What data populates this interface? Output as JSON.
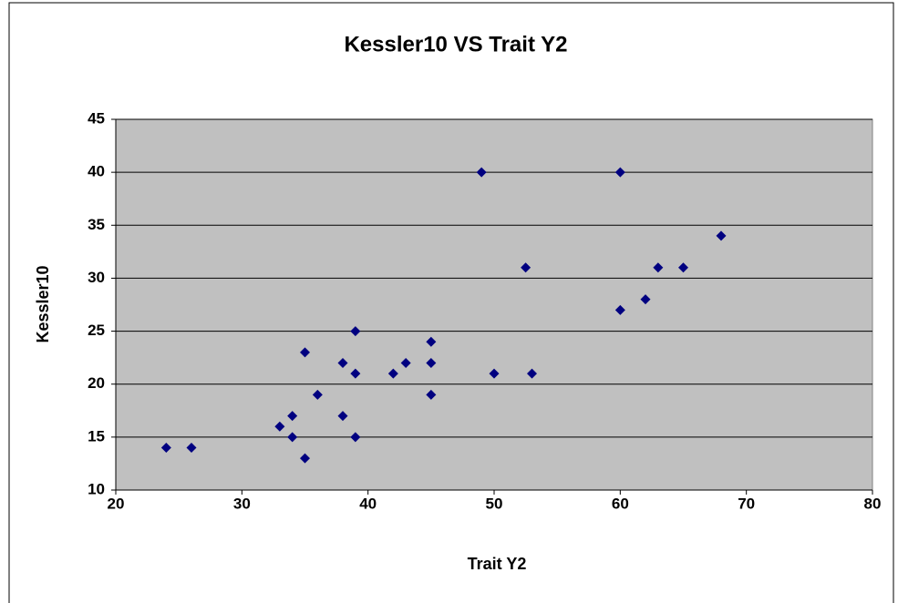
{
  "chart_data": {
    "type": "scatter",
    "title": "Kessler10   VS   Trait Y2",
    "x_label": "Trait Y2",
    "y_label": "Kessler10",
    "series": [
      {
        "name": "Kessler10",
        "color": "#000080",
        "x": [
          24,
          26,
          33,
          34,
          34,
          35,
          35,
          36,
          38,
          38,
          39,
          39,
          39,
          42,
          43,
          45,
          45,
          45,
          49,
          50,
          52.5,
          53,
          60,
          60,
          62,
          63,
          65,
          68
        ],
        "values": [
          14,
          14,
          16,
          17,
          15,
          23,
          13,
          19,
          22,
          17,
          25,
          21,
          15,
          21,
          22,
          24,
          22,
          19,
          40,
          21,
          31,
          21,
          40,
          27,
          28,
          31,
          31,
          34
        ]
      }
    ],
    "xlim": [
      20,
      80
    ],
    "xticks": [
      20,
      30,
      40,
      50,
      60,
      70,
      80
    ],
    "ylim": [
      10,
      45
    ],
    "yticks": [
      10,
      15,
      20,
      25,
      30,
      35,
      40,
      45
    ],
    "grid": true,
    "plot_background": "#c0c0c0"
  }
}
